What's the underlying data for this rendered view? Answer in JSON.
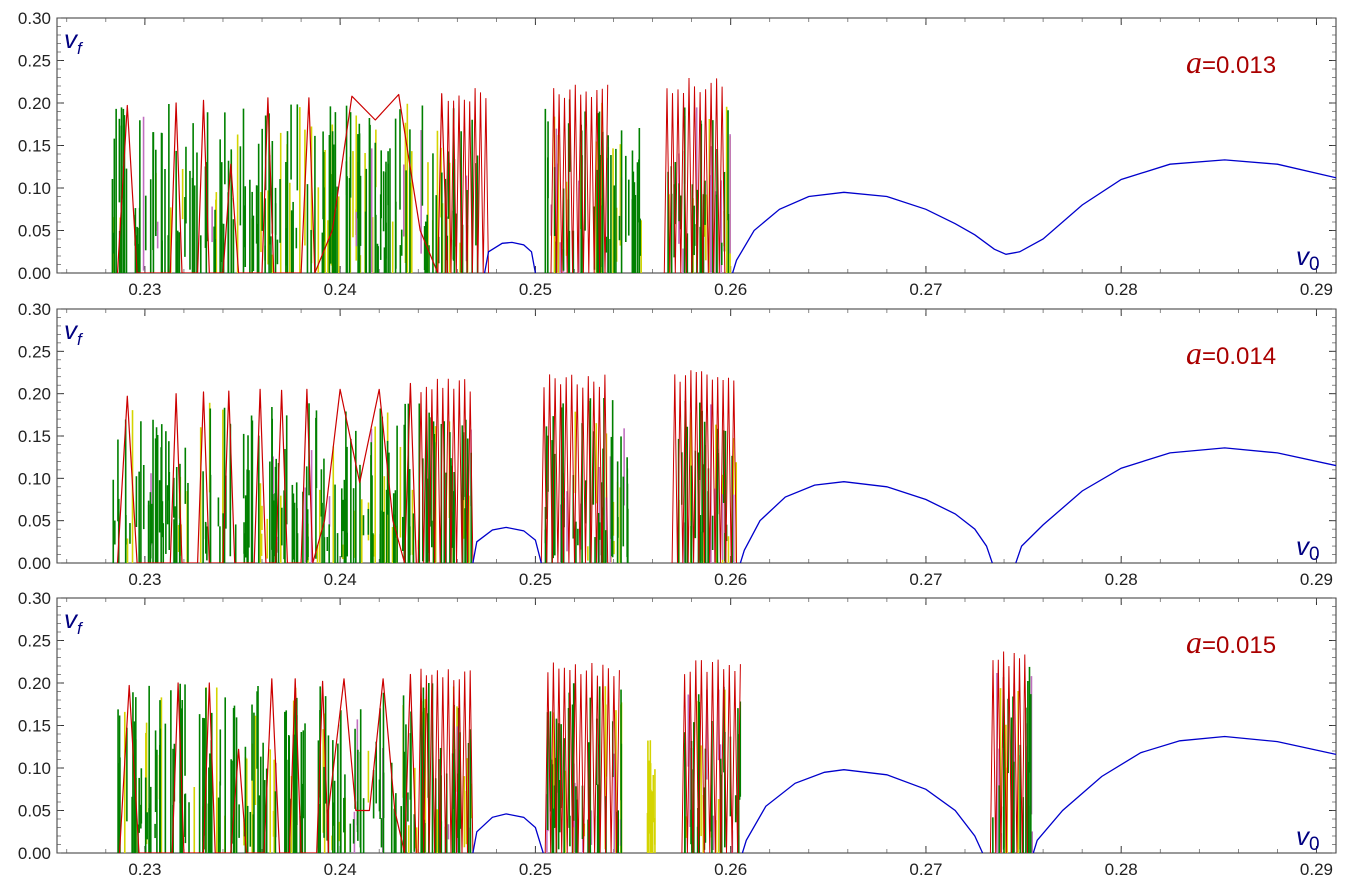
{
  "chart_data": [
    {
      "type": "line",
      "title": "",
      "annotation": {
        "symbol": "a",
        "value": "=0.013"
      },
      "xlabel": "v0",
      "ylabel": "vf",
      "xlim": [
        0.2255,
        0.291
      ],
      "ylim": [
        0,
        0.3
      ],
      "x_ticks": [
        "0.23",
        "0.24",
        "0.25",
        "0.26",
        "0.27",
        "0.28",
        "0.29"
      ],
      "y_ticks": [
        "0.00",
        "0.05",
        "0.10",
        "0.15",
        "0.20",
        "0.25",
        "0.30"
      ],
      "red_envelope": [
        [
          0.2286,
          0
        ],
        [
          0.2291,
          0.197
        ],
        [
          0.2296,
          0
        ],
        [
          0.2313,
          0
        ],
        [
          0.2316,
          0.2
        ],
        [
          0.2319,
          0
        ],
        [
          0.2327,
          0
        ],
        [
          0.233,
          0.203
        ],
        [
          0.2333,
          0
        ],
        [
          0.234,
          0
        ],
        [
          0.2344,
          0.128
        ],
        [
          0.2348,
          0
        ],
        [
          0.236,
          0
        ],
        [
          0.2363,
          0.206
        ],
        [
          0.2366,
          0
        ],
        [
          0.238,
          0
        ],
        [
          0.2384,
          0.206
        ],
        [
          0.2387,
          0
        ],
        [
          0.2396,
          0.05
        ],
        [
          0.2406,
          0.208
        ],
        [
          0.2418,
          0.18
        ],
        [
          0.243,
          0.21
        ],
        [
          0.2441,
          0.05
        ],
        [
          0.245,
          0
        ],
        [
          0.2452,
          0.211
        ],
        [
          0.2455,
          0
        ]
      ],
      "red_burst_ranges": [
        [
          0.2454,
          0.2476,
          0.219
        ],
        [
          0.2508,
          0.2537,
          0.223
        ],
        [
          0.2566,
          0.2597,
          0.23
        ]
      ],
      "green_ranges": [
        [
          0.2283,
          0.2474,
          0.2
        ],
        [
          0.2505,
          0.2555,
          0.205
        ],
        [
          0.2567,
          0.26,
          0.2
        ]
      ],
      "blue_series": [
        [
          0.2474,
          0
        ],
        [
          0.2476,
          0.025
        ],
        [
          0.2483,
          0.035
        ],
        [
          0.2488,
          0.036
        ],
        [
          0.2494,
          0.033
        ],
        [
          0.2498,
          0.025
        ],
        [
          0.25,
          0
        ],
        [
          0.2601,
          0
        ],
        [
          0.2603,
          0.015
        ],
        [
          0.2612,
          0.05
        ],
        [
          0.2625,
          0.075
        ],
        [
          0.264,
          0.09
        ],
        [
          0.2658,
          0.095
        ],
        [
          0.268,
          0.09
        ],
        [
          0.27,
          0.075
        ],
        [
          0.2715,
          0.058
        ],
        [
          0.2725,
          0.045
        ],
        [
          0.2735,
          0.028
        ],
        [
          0.2741,
          0.022
        ],
        [
          0.2748,
          0.025
        ],
        [
          0.276,
          0.04
        ],
        [
          0.278,
          0.08
        ],
        [
          0.28,
          0.11
        ],
        [
          0.2825,
          0.128
        ],
        [
          0.2853,
          0.133
        ],
        [
          0.288,
          0.128
        ],
        [
          0.291,
          0.112
        ]
      ]
    },
    {
      "type": "line",
      "title": "",
      "annotation": {
        "symbol": "a",
        "value": "=0.014"
      },
      "xlabel": "v0",
      "ylabel": "vf",
      "xlim": [
        0.2255,
        0.291
      ],
      "ylim": [
        0,
        0.3
      ],
      "x_ticks": [
        "0.23",
        "0.24",
        "0.25",
        "0.26",
        "0.27",
        "0.28",
        "0.29"
      ],
      "y_ticks": [
        "0.00",
        "0.05",
        "0.10",
        "0.15",
        "0.20",
        "0.25",
        "0.30"
      ],
      "red_envelope": [
        [
          0.2286,
          0
        ],
        [
          0.2291,
          0.197
        ],
        [
          0.2296,
          0
        ],
        [
          0.2313,
          0
        ],
        [
          0.2316,
          0.2
        ],
        [
          0.2319,
          0
        ],
        [
          0.2327,
          0
        ],
        [
          0.233,
          0.202
        ],
        [
          0.2333,
          0
        ],
        [
          0.234,
          0
        ],
        [
          0.2343,
          0.203
        ],
        [
          0.2346,
          0
        ],
        [
          0.2356,
          0
        ],
        [
          0.2359,
          0.205
        ],
        [
          0.2362,
          0
        ],
        [
          0.2367,
          0
        ],
        [
          0.237,
          0.204
        ],
        [
          0.2373,
          0
        ],
        [
          0.238,
          0
        ],
        [
          0.2383,
          0.205
        ],
        [
          0.2386,
          0
        ],
        [
          0.2392,
          0.05
        ],
        [
          0.24,
          0.205
        ],
        [
          0.241,
          0.095
        ],
        [
          0.242,
          0.205
        ],
        [
          0.2427,
          0.05
        ],
        [
          0.2433,
          0
        ],
        [
          0.2436,
          0.212
        ],
        [
          0.2439,
          0
        ]
      ],
      "red_burst_ranges": [
        [
          0.244,
          0.2468,
          0.218
        ],
        [
          0.2503,
          0.2537,
          0.223
        ],
        [
          0.257,
          0.2603,
          0.231
        ]
      ],
      "green_ranges": [
        [
          0.2283,
          0.2468,
          0.19
        ],
        [
          0.2505,
          0.255,
          0.195
        ],
        [
          0.2573,
          0.2603,
          0.195
        ]
      ],
      "blue_series": [
        [
          0.2468,
          0
        ],
        [
          0.247,
          0.025
        ],
        [
          0.2478,
          0.039
        ],
        [
          0.2485,
          0.042
        ],
        [
          0.2494,
          0.038
        ],
        [
          0.25,
          0.027
        ],
        [
          0.2503,
          0
        ],
        [
          0.2605,
          0
        ],
        [
          0.2607,
          0.015
        ],
        [
          0.2615,
          0.05
        ],
        [
          0.2628,
          0.078
        ],
        [
          0.2643,
          0.092
        ],
        [
          0.2658,
          0.096
        ],
        [
          0.268,
          0.09
        ],
        [
          0.27,
          0.075
        ],
        [
          0.2715,
          0.058
        ],
        [
          0.2725,
          0.04
        ],
        [
          0.2731,
          0.02
        ],
        [
          0.2734,
          0
        ],
        [
          0.2746,
          0
        ],
        [
          0.2749,
          0.02
        ],
        [
          0.276,
          0.045
        ],
        [
          0.278,
          0.085
        ],
        [
          0.28,
          0.112
        ],
        [
          0.2825,
          0.13
        ],
        [
          0.2853,
          0.136
        ],
        [
          0.288,
          0.13
        ],
        [
          0.291,
          0.115
        ]
      ]
    },
    {
      "type": "line",
      "title": "",
      "annotation": {
        "symbol": "a",
        "value": "=0.015"
      },
      "xlabel": "v0",
      "ylabel": "vf",
      "xlim": [
        0.2255,
        0.291
      ],
      "ylim": [
        0,
        0.3
      ],
      "x_ticks": [
        "0.23",
        "0.24",
        "0.25",
        "0.26",
        "0.27",
        "0.28",
        "0.29"
      ],
      "y_ticks": [
        "0.00",
        "0.05",
        "0.10",
        "0.15",
        "0.20",
        "0.25",
        "0.30"
      ],
      "red_envelope": [
        [
          0.2287,
          0
        ],
        [
          0.2292,
          0.197
        ],
        [
          0.2297,
          0
        ],
        [
          0.2314,
          0
        ],
        [
          0.2317,
          0.2
        ],
        [
          0.232,
          0
        ],
        [
          0.233,
          0
        ],
        [
          0.2333,
          0.2
        ],
        [
          0.2336,
          0
        ],
        [
          0.2344,
          0
        ],
        [
          0.2348,
          0.122
        ],
        [
          0.2352,
          0
        ],
        [
          0.2361,
          0
        ],
        [
          0.2365,
          0.205
        ],
        [
          0.2369,
          0
        ],
        [
          0.2374,
          0
        ],
        [
          0.2377,
          0.205
        ],
        [
          0.238,
          0
        ],
        [
          0.2388,
          0
        ],
        [
          0.2391,
          0.202
        ],
        [
          0.2394,
          0
        ],
        [
          0.2394,
          0.05
        ],
        [
          0.2402,
          0.205
        ],
        [
          0.2408,
          0.05
        ],
        [
          0.2415,
          0.05
        ],
        [
          0.2422,
          0.205
        ],
        [
          0.2428,
          0.05
        ],
        [
          0.2433,
          0
        ],
        [
          0.2436,
          0.21
        ],
        [
          0.2439,
          0
        ]
      ],
      "red_burst_ranges": [
        [
          0.244,
          0.2468,
          0.218
        ],
        [
          0.2505,
          0.2543,
          0.225
        ],
        [
          0.2575,
          0.2605,
          0.228
        ],
        [
          0.2733,
          0.2752,
          0.238
        ]
      ],
      "green_ranges": [
        [
          0.2284,
          0.2468,
          0.2
        ],
        [
          0.2505,
          0.2545,
          0.2
        ],
        [
          0.2575,
          0.2605,
          0.2
        ],
        [
          0.2733,
          0.2755,
          0.22
        ]
      ],
      "yellow_ranges": [
        [
          0.2556,
          0.2562,
          0.135
        ]
      ],
      "blue_series": [
        [
          0.2468,
          0
        ],
        [
          0.247,
          0.025
        ],
        [
          0.2478,
          0.042
        ],
        [
          0.2485,
          0.046
        ],
        [
          0.2494,
          0.042
        ],
        [
          0.25,
          0.03
        ],
        [
          0.2504,
          0
        ],
        [
          0.2606,
          0
        ],
        [
          0.2608,
          0.015
        ],
        [
          0.2618,
          0.055
        ],
        [
          0.2633,
          0.082
        ],
        [
          0.2648,
          0.095
        ],
        [
          0.2658,
          0.098
        ],
        [
          0.268,
          0.092
        ],
        [
          0.27,
          0.075
        ],
        [
          0.2715,
          0.05
        ],
        [
          0.2725,
          0.02
        ],
        [
          0.2729,
          0
        ],
        [
          0.2755,
          0
        ],
        [
          0.2757,
          0.015
        ],
        [
          0.277,
          0.05
        ],
        [
          0.279,
          0.09
        ],
        [
          0.281,
          0.118
        ],
        [
          0.283,
          0.132
        ],
        [
          0.2853,
          0.137
        ],
        [
          0.288,
          0.131
        ],
        [
          0.291,
          0.116
        ]
      ]
    }
  ],
  "colors": {
    "red": "#cc0000",
    "green": "#008000",
    "yellow": "#d4d400",
    "magenta": "#c070c0",
    "blue": "#0000cc",
    "label_blue": "#000080",
    "annotation_red": "#aa0000"
  }
}
